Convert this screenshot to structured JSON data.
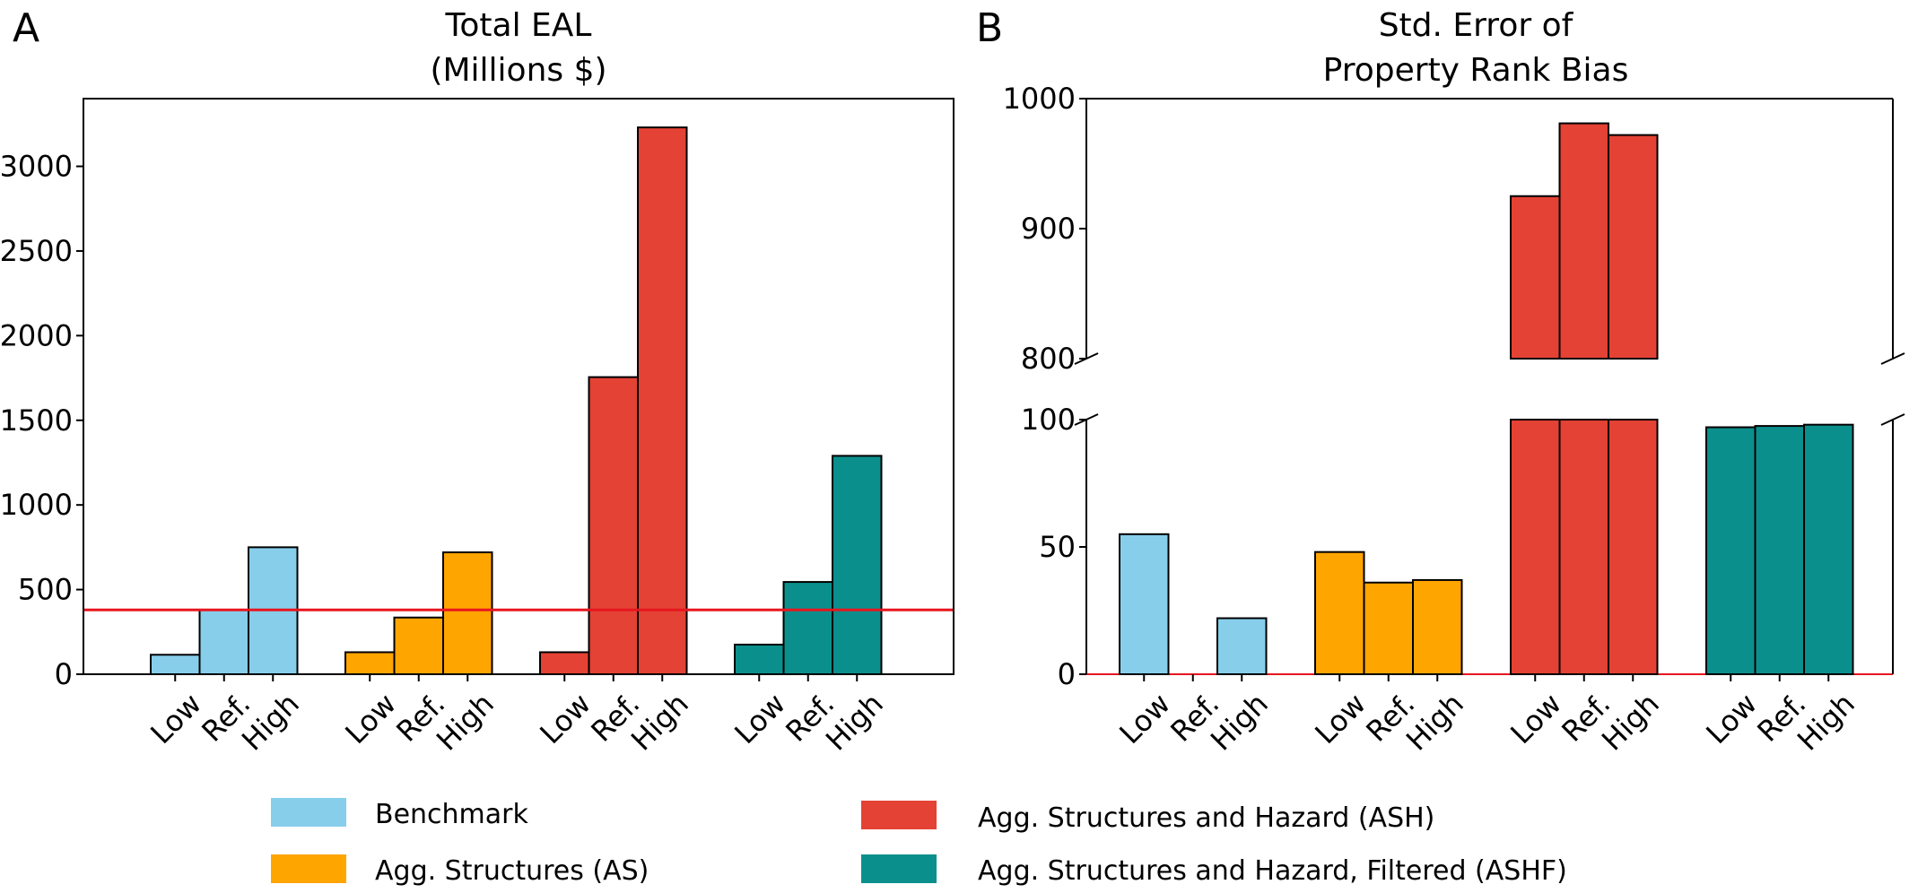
{
  "panels": {
    "a": {
      "letter": "A",
      "title_lines": [
        "Total EAL",
        "(Millions $)"
      ]
    },
    "b": {
      "letter": "B",
      "title_lines": [
        "Std. Error of",
        "Property Rank Bias"
      ]
    }
  },
  "legend": [
    {
      "label": "Benchmark",
      "color": "#87ceeb"
    },
    {
      "label": "Agg. Structures and Hazard (ASH)",
      "color": "#e34234"
    },
    {
      "label": "Agg. Structures (AS)",
      "color": "#ffa500"
    },
    {
      "label": "Agg. Structures and Hazard, Filtered (ASHF)",
      "color": "#0b8f8c"
    }
  ],
  "chart_data": [
    {
      "type": "bar",
      "title": "Total EAL (Millions $)",
      "groups": [
        "Benchmark",
        "Agg. Structures (AS)",
        "Agg. Structures and Hazard (ASH)",
        "Agg. Structures and Hazard, Filtered (ASHF)"
      ],
      "categories": [
        "Low",
        "Ref.",
        "High"
      ],
      "colors": [
        "#87ceeb",
        "#ffa500",
        "#e34234",
        "#0b8f8c"
      ],
      "series": [
        {
          "name": "Benchmark",
          "values": [
            115,
            380,
            750
          ]
        },
        {
          "name": "Agg. Structures (AS)",
          "values": [
            130,
            335,
            720
          ]
        },
        {
          "name": "Agg. Structures and Hazard (ASH)",
          "values": [
            130,
            1755,
            3230
          ]
        },
        {
          "name": "Agg. Structures and Hazard, Filtered (ASHF)",
          "values": [
            175,
            545,
            1290
          ]
        }
      ],
      "reference_line": {
        "y": 380,
        "color": "#e8161e"
      },
      "yticks": [
        0,
        500,
        1000,
        1500,
        2000,
        2500,
        3000
      ],
      "ylim": [
        0,
        3400
      ],
      "grid": false
    },
    {
      "type": "bar",
      "title": "Std. Error of Property Rank Bias",
      "broken_axis": true,
      "groups": [
        "Benchmark",
        "Agg. Structures (AS)",
        "Agg. Structures and Hazard (ASH)",
        "Agg. Structures and Hazard, Filtered (ASHF)"
      ],
      "categories": [
        "Low",
        "Ref.",
        "High"
      ],
      "colors": [
        "#87ceeb",
        "#ffa500",
        "#e34234",
        "#0b8f8c"
      ],
      "series": [
        {
          "name": "Benchmark",
          "values": [
            55,
            0,
            22
          ]
        },
        {
          "name": "Agg. Structures (AS)",
          "values": [
            48,
            36,
            37
          ]
        },
        {
          "name": "Agg. Structures and Hazard (ASH)",
          "values": [
            925,
            981,
            972
          ]
        },
        {
          "name": "Agg. Structures and Hazard, Filtered (ASHF)",
          "values": [
            97,
            97.5,
            98
          ]
        }
      ],
      "upper_ylim": [
        800,
        1000
      ],
      "upper_yticks": [
        800,
        900,
        1000
      ],
      "lower_ylim": [
        0,
        100
      ],
      "lower_yticks": [
        0,
        50,
        100
      ],
      "baseline_color": "#e8161e",
      "grid": false
    }
  ]
}
